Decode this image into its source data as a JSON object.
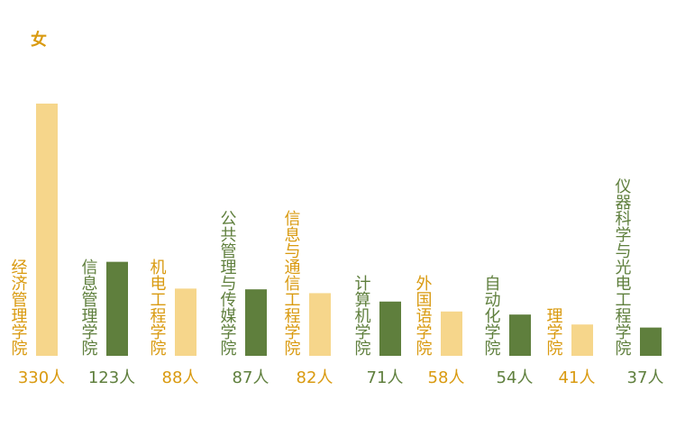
{
  "chart_data": {
    "type": "bar",
    "title": "女",
    "categories": [
      "经济管理学院",
      "信息管理学院",
      "机电工程学院",
      "公共管理与传媒学院",
      "信息与通信工程学院",
      "计算机学院",
      "外国语学院",
      "自动化学院",
      "理学院",
      "仪器科学与光电工程学院"
    ],
    "values": [
      330,
      123,
      88,
      87,
      82,
      71,
      58,
      54,
      41,
      37
    ],
    "value_labels": [
      "330人",
      "123人",
      "88人",
      "87人",
      "82人",
      "71人",
      "58人",
      "54人",
      "41人",
      "37人"
    ],
    "colors": [
      "#f6d68b",
      "#5f7f3d",
      "#f6d68b",
      "#5f7f3d",
      "#f6d68b",
      "#5f7f3d",
      "#f6d68b",
      "#5f7f3d",
      "#f6d68b",
      "#5f7f3d"
    ],
    "label_colors": [
      "#d99a10",
      "#5f7f3d",
      "#d99a10",
      "#5f7f3d",
      "#d99a10",
      "#5f7f3d",
      "#d99a10",
      "#5f7f3d",
      "#d99a10",
      "#5f7f3d"
    ],
    "title_color": "#d99a10"
  }
}
